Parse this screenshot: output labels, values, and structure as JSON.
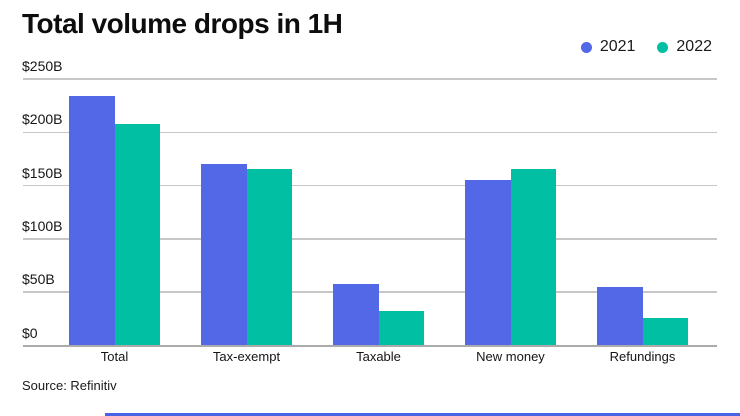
{
  "title": "Total volume drops in 1H",
  "source": "Source: Refinitiv",
  "accent_bar_color": "#4a63e4",
  "colors": {
    "series_2021": "#5368e6",
    "series_2022": "#01bfa2",
    "grid": "#c7c7c7",
    "baseline": "#ababab",
    "text": "#111111"
  },
  "chart_data": {
    "type": "bar",
    "title": "Total volume drops in 1H",
    "categories": [
      "Total",
      "Tax-exempt",
      "Taxable",
      "New money",
      "Refundings"
    ],
    "series": [
      {
        "name": "2021",
        "color": "#5368e6",
        "values": [
          234,
          170,
          58,
          155,
          55
        ]
      },
      {
        "name": "2022",
        "color": "#01bfa2",
        "values": [
          208,
          166,
          32,
          166,
          26
        ]
      }
    ],
    "y_ticks": [
      {
        "label": "$0",
        "value": 0
      },
      {
        "label": "$50B",
        "value": 50
      },
      {
        "label": "$100B",
        "value": 100
      },
      {
        "label": "$150B",
        "value": 150
      },
      {
        "label": "$200B",
        "value": 200
      },
      {
        "label": "$250B",
        "value": 250
      }
    ],
    "ylim": [
      0,
      250
    ],
    "grid": true,
    "legend_position": "top-right",
    "source": "Source: Refinitiv"
  }
}
